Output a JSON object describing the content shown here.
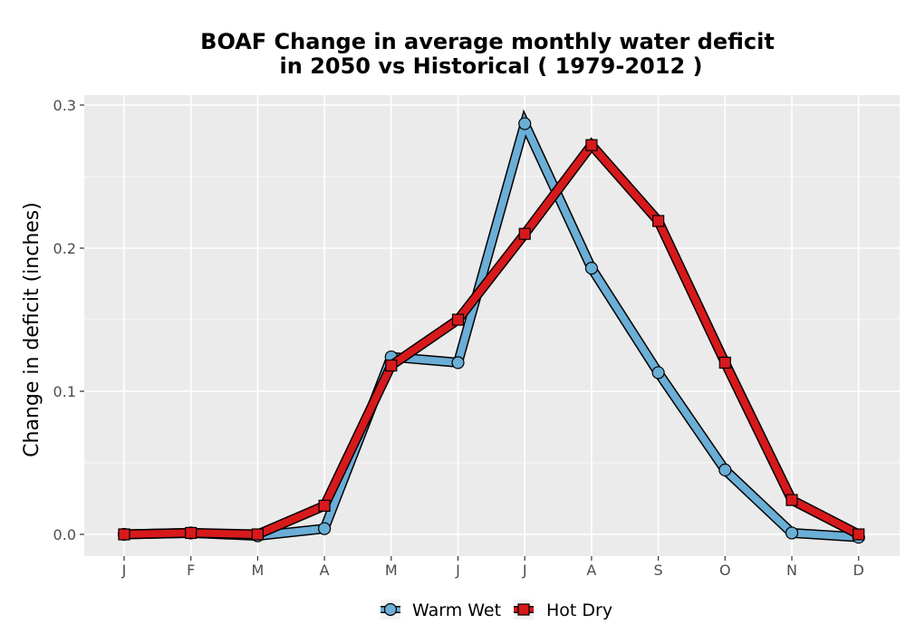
{
  "chart_data": {
    "type": "line",
    "title": [
      "BOAF  Change in average monthly water deficit",
      "in 2050 vs Historical ( 1979-2012 )"
    ],
    "xlabel": "",
    "ylabel": "Change in deficit (inches)",
    "categories": [
      "J",
      "F",
      "M",
      "A",
      "M",
      "J",
      "J",
      "A",
      "S",
      "O",
      "N",
      "D"
    ],
    "yticks": [
      "0.0",
      "0.1",
      "0.2",
      "0.3"
    ],
    "ylim": [
      -0.015,
      0.3
    ],
    "grid": true,
    "legend": "bottom",
    "colors": {
      "panel": "#ebebeb",
      "grid": "#ffffff"
    },
    "series": [
      {
        "name": "Warm Wet",
        "color": "#6baed6",
        "marker": "circle",
        "values": [
          0.0,
          0.001,
          -0.001,
          0.004,
          0.124,
          0.12,
          0.287,
          0.186,
          0.113,
          0.045,
          0.001,
          -0.002
        ]
      },
      {
        "name": "Hot Dry",
        "color": "#d7191c",
        "marker": "square",
        "values": [
          0.0,
          0.001,
          0.0,
          0.02,
          0.118,
          0.15,
          0.21,
          0.272,
          0.219,
          0.12,
          0.024,
          0.0
        ]
      }
    ]
  }
}
